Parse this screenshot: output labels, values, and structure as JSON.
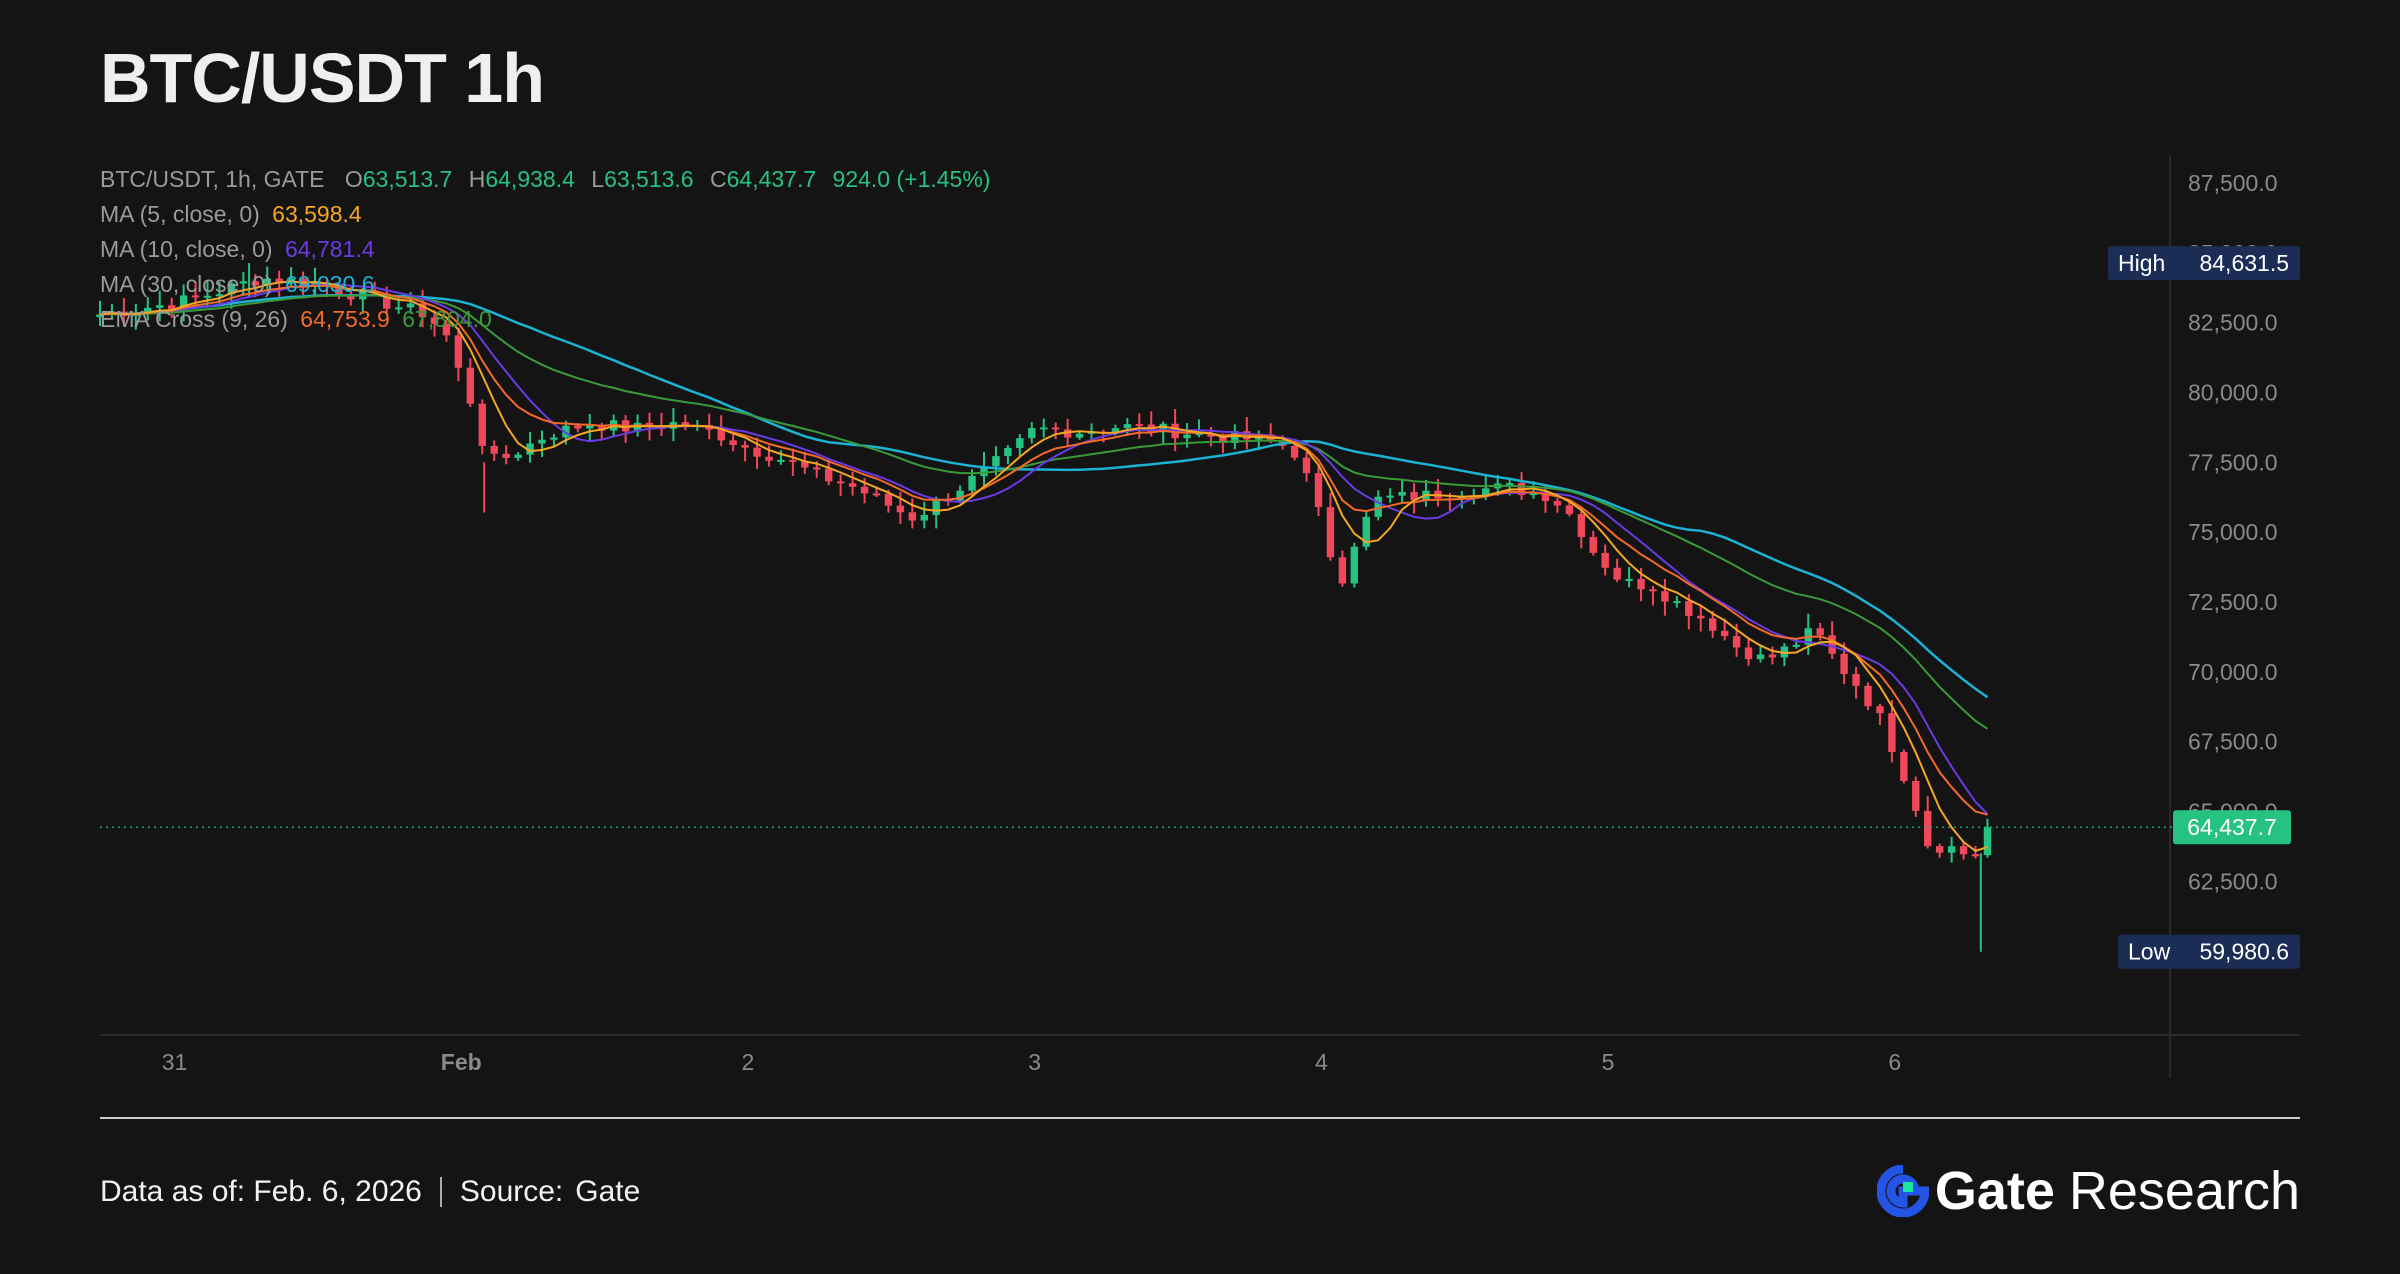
{
  "title": "BTC/USDT 1h",
  "legend": {
    "ohlc_label": "BTC/USDT, 1h, GATE",
    "open_prefix": "O",
    "open": "63,513.7",
    "high_prefix": "H",
    "high": "64,938.4",
    "low_prefix": "L",
    "low": "63,513.6",
    "close_prefix": "C",
    "close": "64,437.7",
    "change": "924.0 (+1.45%)",
    "ma5_label": "MA (5, close, 0)",
    "ma5_value": "63,598.4",
    "ma10_label": "MA (10, close, 0)",
    "ma10_value": "64,781.4",
    "ma30_label": "MA (30, close, 0)",
    "ma30_value": "69,030.6",
    "ema_label": "EMA Cross (9, 26)",
    "ema_fast_value": "64,753.9",
    "ema_slow_value": "67,804.0"
  },
  "colors": {
    "up": "#26c281",
    "down": "#f0475a",
    "ma5": "#f5a623",
    "ma10": "#6a3be4",
    "ma30": "#1cb2d3",
    "ema_fast": "#f46a2a",
    "ema_slow": "#3a9a3a",
    "axis_text": "#8a8a8a",
    "badge_bg": "#1b2d55"
  },
  "chart_data": {
    "type": "candlestick",
    "y_axis": {
      "ticks": [
        62500,
        65000,
        67500,
        70000,
        72500,
        75000,
        77500,
        80000,
        82500,
        85000,
        87500
      ],
      "tick_labels": [
        "62,500.0",
        "65,000.0",
        "67,500.0",
        "70,000.0",
        "72,500.0",
        "75,000.0",
        "77,500.0",
        "80,000.0",
        "82,500.0",
        "85,000.0",
        "87,500.0"
      ],
      "ylim": [
        57000,
        88500
      ]
    },
    "x_axis": {
      "labels": [
        "31",
        "Feb",
        "2",
        "3",
        "4",
        "5",
        "6"
      ],
      "positions_days": [
        0,
        1,
        2,
        3,
        4,
        5,
        6
      ],
      "xlim_days": [
        -0.26,
        6.96
      ]
    },
    "high_marker": {
      "label": "High",
      "value": 84631.5,
      "text": "84,631.5"
    },
    "low_marker": {
      "label": "Low",
      "value": 59980.6,
      "text": "59,980.6"
    },
    "last_price": {
      "value": 64437.7,
      "text": "64,437.7"
    },
    "price_path": [
      [
        -0.26,
        82800
      ],
      [
        0.0,
        83200
      ],
      [
        0.15,
        83600
      ],
      [
        0.3,
        84100
      ],
      [
        0.5,
        83900
      ],
      [
        0.7,
        83300
      ],
      [
        0.88,
        82800
      ],
      [
        0.95,
        82000
      ],
      [
        1.0,
        80500
      ],
      [
        1.04,
        79500
      ],
      [
        1.08,
        78000
      ],
      [
        1.12,
        77500
      ],
      [
        1.18,
        77800
      ],
      [
        1.3,
        78500
      ],
      [
        1.45,
        78900
      ],
      [
        1.6,
        78700
      ],
      [
        1.75,
        78900
      ],
      [
        1.9,
        78500
      ],
      [
        2.0,
        78000
      ],
      [
        2.1,
        77700
      ],
      [
        2.25,
        77000
      ],
      [
        2.35,
        76700
      ],
      [
        2.45,
        76200
      ],
      [
        2.52,
        75800
      ],
      [
        2.58,
        75500
      ],
      [
        2.68,
        76200
      ],
      [
        2.8,
        77000
      ],
      [
        2.92,
        77900
      ],
      [
        3.0,
        78700
      ],
      [
        3.15,
        78600
      ],
      [
        3.3,
        78800
      ],
      [
        3.5,
        78600
      ],
      [
        3.65,
        78400
      ],
      [
        3.8,
        78300
      ],
      [
        3.9,
        78000
      ],
      [
        3.97,
        76500
      ],
      [
        4.02,
        74500
      ],
      [
        4.07,
        73300
      ],
      [
        4.12,
        74800
      ],
      [
        4.2,
        76200
      ],
      [
        4.35,
        76300
      ],
      [
        4.5,
        76500
      ],
      [
        4.65,
        76600
      ],
      [
        4.8,
        76300
      ],
      [
        4.88,
        75500
      ],
      [
        4.95,
        74300
      ],
      [
        5.05,
        73200
      ],
      [
        5.15,
        73100
      ],
      [
        5.25,
        72400
      ],
      [
        5.35,
        71800
      ],
      [
        5.45,
        70900
      ],
      [
        5.55,
        70400
      ],
      [
        5.65,
        71000
      ],
      [
        5.72,
        71500
      ],
      [
        5.8,
        70300
      ],
      [
        5.88,
        69400
      ],
      [
        5.95,
        68300
      ],
      [
        6.0,
        67100
      ],
      [
        6.06,
        65600
      ],
      [
        6.12,
        63700
      ],
      [
        6.18,
        63800
      ],
      [
        6.24,
        63500
      ],
      [
        6.3,
        63500
      ],
      [
        6.35,
        64400
      ]
    ]
  },
  "footer": {
    "data_as_of": "Data as of: Feb. 6, 2026",
    "source_label": "Source:",
    "source_value": "Gate"
  },
  "brand": {
    "name": "Gate",
    "suffix": "Research"
  }
}
